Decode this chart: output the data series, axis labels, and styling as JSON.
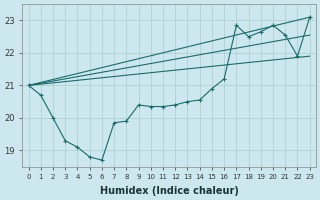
{
  "xlabel": "Humidex (Indice chaleur)",
  "xlim": [
    -0.5,
    23.5
  ],
  "ylim": [
    18.5,
    23.5
  ],
  "bg_color": "#cce8ee",
  "line_color": "#1a6b6b",
  "grid_color": "#aacccc",
  "xticks": [
    0,
    1,
    2,
    3,
    4,
    5,
    6,
    7,
    8,
    9,
    10,
    11,
    12,
    13,
    14,
    15,
    16,
    17,
    18,
    19,
    20,
    21,
    22,
    23
  ],
  "yticks": [
    19,
    20,
    21,
    22,
    23
  ],
  "lines": [
    {
      "x": [
        0,
        1,
        2,
        3,
        4,
        5,
        6,
        7,
        8,
        9,
        10,
        11,
        12,
        13,
        14,
        15,
        16,
        17,
        18,
        19,
        20,
        21,
        22,
        23
      ],
      "y": [
        21.0,
        20.7,
        20.0,
        19.3,
        19.1,
        18.8,
        18.7,
        19.85,
        19.9,
        20.4,
        20.35,
        20.35,
        20.4,
        20.5,
        20.55,
        20.9,
        21.2,
        22.85,
        22.5,
        22.65,
        22.85,
        22.55,
        21.9,
        23.1
      ],
      "marker": true
    },
    {
      "x": [
        0,
        23
      ],
      "y": [
        21.0,
        23.1
      ],
      "marker": false
    },
    {
      "x": [
        0,
        23
      ],
      "y": [
        21.0,
        22.55
      ],
      "marker": false
    },
    {
      "x": [
        0,
        23
      ],
      "y": [
        21.0,
        21.9
      ],
      "marker": false
    }
  ]
}
